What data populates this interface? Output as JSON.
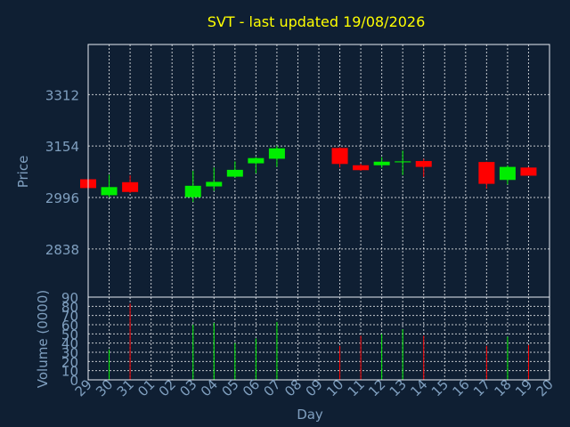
{
  "colors": {
    "background": "#0f1f33",
    "title": "#ffff00",
    "axis_text": "#7f9fbf",
    "frame": "#e8eef5",
    "grid": "#ffffff",
    "up": "#00ee00",
    "down": "#ff0000"
  },
  "chart_data": {
    "type": "candlestick",
    "title": "SVT - last updated 19/08/2026",
    "price_axis": {
      "label": "Price",
      "ticks": [
        2838,
        2996,
        3154,
        3312
      ],
      "range": [
        2690,
        3466
      ]
    },
    "volume_axis": {
      "label": "Volume (0000)",
      "ticks": [
        0,
        10,
        20,
        30,
        40,
        50,
        60,
        70,
        80,
        90
      ],
      "range": [
        0,
        90
      ]
    },
    "x_axis": {
      "label": "Day",
      "ticks": [
        "29",
        "30",
        "31",
        "01",
        "02",
        "03",
        "04",
        "05",
        "06",
        "07",
        "08",
        "09",
        "10",
        "11",
        "12",
        "13",
        "14",
        "15",
        "16",
        "17",
        "18",
        "19",
        "20"
      ]
    },
    "grid": true,
    "candles": [
      {
        "day": "29",
        "open": 3052,
        "close": 3025,
        "high": 3063,
        "low": 3020,
        "volume": 0
      },
      {
        "day": "30",
        "open": 3003,
        "close": 3028,
        "high": 3066,
        "low": 2996,
        "volume": 33
      },
      {
        "day": "31",
        "open": 3043,
        "close": 3013,
        "high": 3064,
        "low": 3010,
        "volume": 83
      },
      {
        "day": "03",
        "open": 2997,
        "close": 3032,
        "high": 3078,
        "low": 2982,
        "volume": 60
      },
      {
        "day": "04",
        "open": 3030,
        "close": 3044,
        "high": 3088,
        "low": 3016,
        "volume": 62
      },
      {
        "day": "05",
        "open": 3060,
        "close": 3081,
        "high": 3107,
        "low": 3057,
        "volume": 40
      },
      {
        "day": "06",
        "open": 3101,
        "close": 3117,
        "high": 3120,
        "low": 3070,
        "volume": 45
      },
      {
        "day": "07",
        "open": 3115,
        "close": 3147,
        "high": 3155,
        "low": 3090,
        "volume": 63
      },
      {
        "day": "10",
        "open": 3148,
        "close": 3099,
        "high": 3150,
        "low": 3088,
        "volume": 37
      },
      {
        "day": "11",
        "open": 3095,
        "close": 3080,
        "high": 3100,
        "low": 3078,
        "volume": 48
      },
      {
        "day": "12",
        "open": 3095,
        "close": 3106,
        "high": 3120,
        "low": 3087,
        "volume": 50
      },
      {
        "day": "13",
        "open": 3104,
        "close": 3107,
        "high": 3140,
        "low": 3065,
        "volume": 55
      },
      {
        "day": "14",
        "open": 3108,
        "close": 3090,
        "high": 3115,
        "low": 3059,
        "volume": 48
      },
      {
        "day": "17",
        "open": 3105,
        "close": 3038,
        "high": 3106,
        "low": 3023,
        "volume": 37
      },
      {
        "day": "18",
        "open": 3050,
        "close": 3090,
        "high": 3095,
        "low": 3036,
        "volume": 47
      },
      {
        "day": "19",
        "open": 3088,
        "close": 3063,
        "high": 3090,
        "low": 3063,
        "volume": 38
      }
    ]
  }
}
